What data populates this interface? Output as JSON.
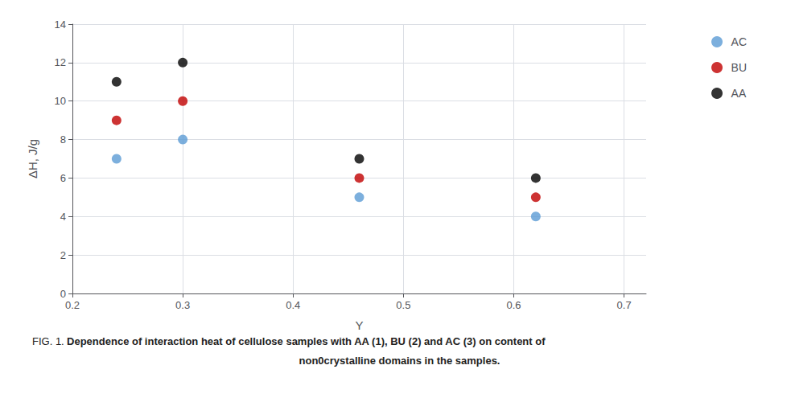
{
  "chart_data": {
    "type": "scatter",
    "xlabel": "Y",
    "ylabel": "ΔH, J/g",
    "annotations": [
      "FIG. 1.",
      "Dependence of interaction heat of cellulose samples with AA (1), BU (2) and AC (3) on content of",
      "non0crystalline domains in the samples."
    ],
    "series": [
      {
        "name": "AC",
        "color": "#5B9BD5",
        "x": [
          0.24,
          0.3,
          0.46,
          0.62
        ],
        "values": [
          7.0,
          8.0,
          5.0,
          4.0
        ]
      },
      {
        "name": "BU",
        "color": "#C00000",
        "x": [
          0.24,
          0.3,
          0.46,
          0.62
        ],
        "values": [
          9.0,
          10.0,
          6.0,
          5.0
        ]
      },
      {
        "name": "AA",
        "color": "#000000",
        "x": [
          0.24,
          0.3,
          0.46,
          0.62
        ],
        "values": [
          11.0,
          12.0,
          7.0,
          6.0
        ]
      }
    ],
    "xlim": [
      0.2,
      0.72
    ],
    "ylim": [
      0,
      14
    ],
    "xticks": [
      0.2,
      0.3,
      0.4,
      0.5,
      0.6,
      0.7
    ],
    "yticks": [
      0,
      2,
      4,
      6,
      8,
      10,
      12,
      14
    ],
    "grid": true,
    "legend": "right"
  }
}
